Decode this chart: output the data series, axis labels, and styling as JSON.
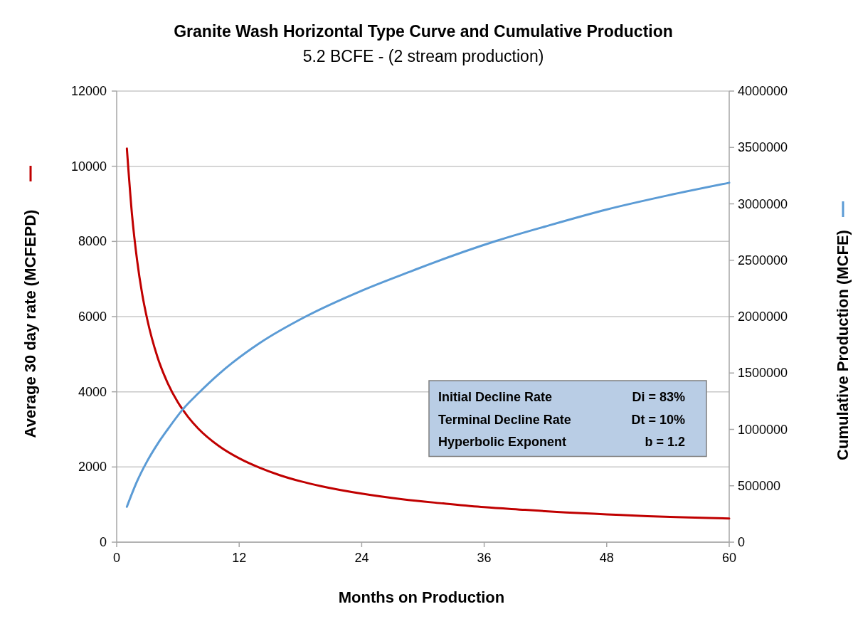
{
  "chart_data": {
    "type": "line",
    "title": "Granite Wash Horizontal Type Curve and Cumulative Production",
    "subtitle": "5.2 BCFE - (2 stream production)",
    "xlabel": "Months on Production",
    "ylabel": "Average 30 day rate (MCFEPD)",
    "y2label": "Cumulative Production (MCFE)",
    "xlim": [
      0,
      60
    ],
    "xticks": [
      0,
      12,
      24,
      36,
      48,
      60
    ],
    "ylim": [
      0,
      12000
    ],
    "yticks": [
      0,
      2000,
      4000,
      6000,
      8000,
      10000,
      12000
    ],
    "y2lim": [
      0,
      4000000
    ],
    "y2ticks": [
      0,
      500000,
      1000000,
      1500000,
      2000000,
      2500000,
      3000000,
      3500000,
      4000000
    ],
    "grid": "y",
    "marker": "none",
    "line_style": "solid",
    "annotations": [
      "Initial Decline Rate",
      "Di = 83%",
      "Terminal Decline Rate",
      "Dt = 10%",
      "Hyperbolic Exponent",
      "b = 1.2"
    ],
    "series": [
      {
        "color": "#c00000",
        "x": [
          1,
          1.5,
          2,
          2.5,
          3,
          4,
          5,
          6,
          7,
          8,
          10,
          12,
          14,
          16,
          18,
          20,
          24,
          28,
          32,
          36,
          40,
          44,
          48,
          52,
          56,
          60
        ],
        "values": [
          10470,
          8720,
          7500,
          6600,
          5920,
          4920,
          4230,
          3720,
          3330,
          3020,
          2560,
          2230,
          1980,
          1780,
          1620,
          1490,
          1290,
          1140,
          1030,
          930,
          860,
          790,
          740,
          690,
          660,
          630
        ]
      },
      {
        "color": "#5b9bd5",
        "axis": "y2",
        "x": [
          1,
          2,
          3,
          4,
          5,
          6.5,
          8,
          10,
          11.4,
          14,
          18.5,
          24,
          29,
          30.5,
          37.2,
          42,
          48,
          54,
          60
        ],
        "values": [
          314000,
          540000,
          720000,
          870000,
          1000000,
          1180000,
          1320000,
          1490000,
          1595000,
          1765000,
          2000000,
          2230000,
          2408000,
          2460000,
          2672000,
          2800000,
          2950000,
          3075000,
          3187000
        ]
      }
    ]
  }
}
